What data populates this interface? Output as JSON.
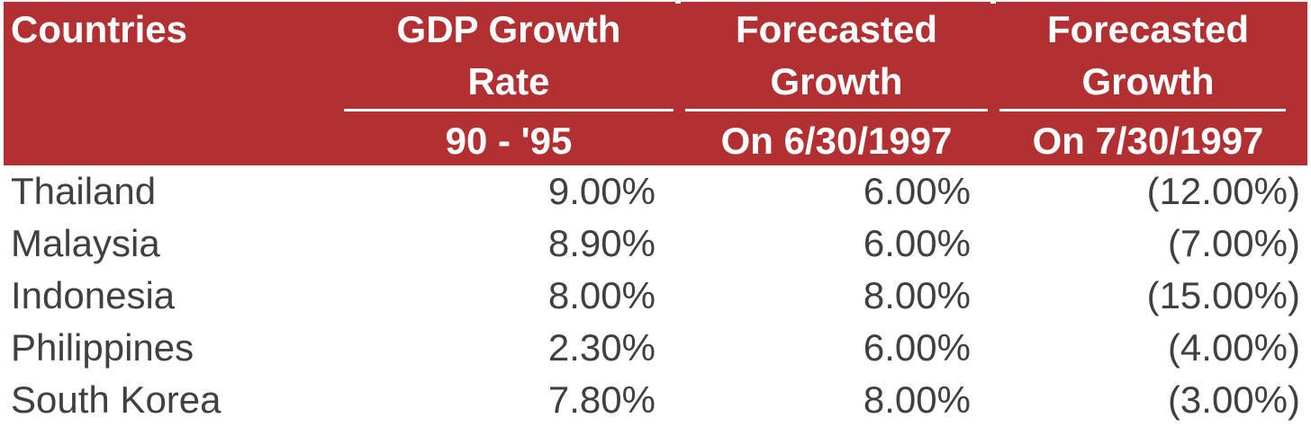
{
  "header": {
    "col0": "Countries",
    "col1_line1": "GDP Growth",
    "col1_line2": "Rate",
    "col1_sub": "90 - '95",
    "col2_line1": "Forecasted",
    "col2_line2": "Growth",
    "col2_sub": "On 6/30/1997",
    "col3_line1": "Forecasted",
    "col3_line2": "Growth",
    "col3_sub": "On 7/30/1997"
  },
  "rows": [
    {
      "country": "Thailand",
      "gdp": "9.00%",
      "f1": "6.00%",
      "f2": "(12.00%)"
    },
    {
      "country": "Malaysia",
      "gdp": "8.90%",
      "f1": "6.00%",
      "f2": "(7.00%)"
    },
    {
      "country": "Indonesia",
      "gdp": "8.00%",
      "f1": "8.00%",
      "f2": "(15.00%)"
    },
    {
      "country": "Philippines",
      "gdp": "2.30%",
      "f1": "6.00%",
      "f2": "(4.00%)"
    },
    {
      "country": "South Korea",
      "gdp": "7.80%",
      "f1": "8.00%",
      "f2": "(3.00%)"
    }
  ],
  "colors": {
    "header_bg": "#b22f32",
    "header_text": "#ffffff",
    "body_text": "#404040"
  }
}
